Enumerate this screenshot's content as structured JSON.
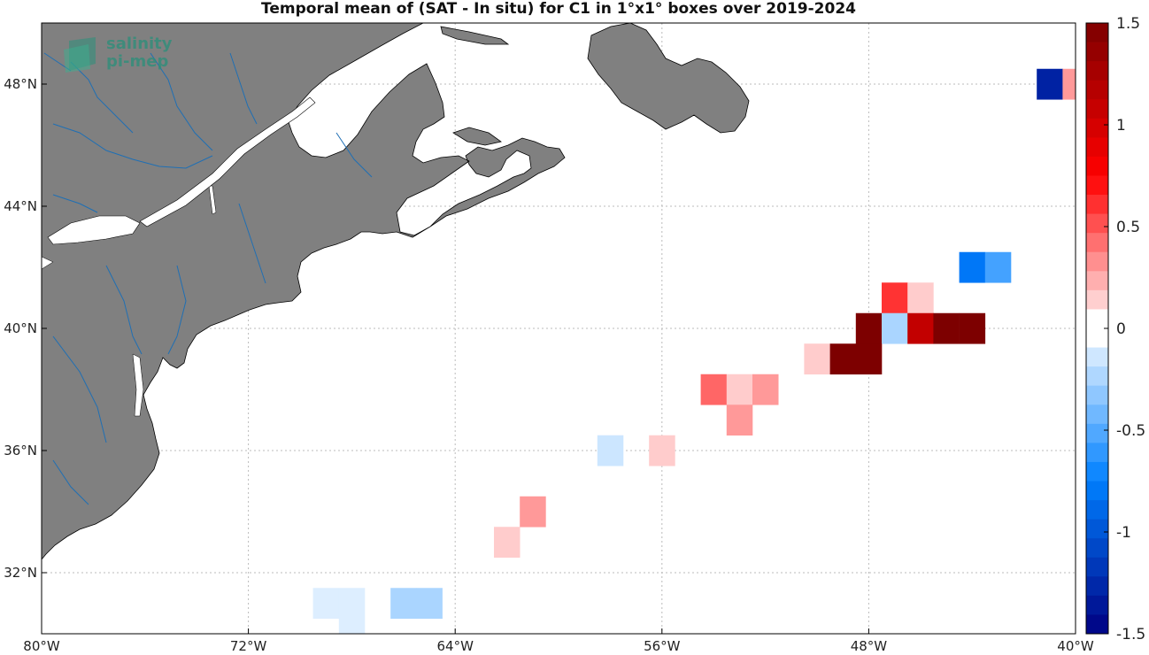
{
  "title": "Temporal mean of (SAT - In situ) for C1 in 1°x1° boxes over 2019-2024",
  "map": {
    "lon_range": [
      -80,
      -40
    ],
    "lat_range": [
      30,
      50
    ],
    "x_ticks": [
      {
        "value": -80,
        "label": "80°W"
      },
      {
        "value": -72,
        "label": "72°W"
      },
      {
        "value": -64,
        "label": "64°W"
      },
      {
        "value": -56,
        "label": "56°W"
      },
      {
        "value": -48,
        "label": "48°W"
      },
      {
        "value": -40,
        "label": "40°W"
      }
    ],
    "y_ticks": [
      {
        "value": 32,
        "label": "32°N"
      },
      {
        "value": 36,
        "label": "36°N"
      },
      {
        "value": 40,
        "label": "40°N"
      },
      {
        "value": 44,
        "label": "44°N"
      },
      {
        "value": 48,
        "label": "48°N"
      }
    ],
    "grid": true,
    "land_color": "#808080",
    "river_color": "#1f6fb4"
  },
  "logo": {
    "line1": "salinity",
    "line2": "pi-mep"
  },
  "colorbar": {
    "range": [
      -1.5,
      1.5
    ],
    "ticks": [
      {
        "value": 1.5,
        "label": "1.5"
      },
      {
        "value": 1,
        "label": "1"
      },
      {
        "value": 0.5,
        "label": "0.5"
      },
      {
        "value": 0,
        "label": "0"
      },
      {
        "value": -0.5,
        "label": "-0.5"
      },
      {
        "value": -1,
        "label": "-1"
      },
      {
        "value": -1.5,
        "label": "-1.5"
      }
    ],
    "levels": 32
  },
  "chart_data": {
    "type": "heatmap",
    "title": "Temporal mean of (SAT - In situ) for C1 in 1°x1° boxes over 2019-2024",
    "xlim": [
      -80,
      -40
    ],
    "ylim": [
      30,
      50
    ],
    "zlim": [
      -1.5,
      1.5
    ],
    "cells": [
      {
        "lon": -41,
        "lat": 48,
        "value": -1.3
      },
      {
        "lon": -40,
        "lat": 48,
        "value": 0.3
      },
      {
        "lon": -44,
        "lat": 42,
        "value": -0.8
      },
      {
        "lon": -43,
        "lat": 42,
        "value": -0.55
      },
      {
        "lon": -47,
        "lat": 41,
        "value": 0.6
      },
      {
        "lon": -46,
        "lat": 41,
        "value": 0.15
      },
      {
        "lon": -48,
        "lat": 40,
        "value": 1.5
      },
      {
        "lon": -47,
        "lat": 40,
        "value": -0.25
      },
      {
        "lon": -46,
        "lat": 40,
        "value": 1.1
      },
      {
        "lon": -45,
        "lat": 40,
        "value": 1.5
      },
      {
        "lon": -44,
        "lat": 40,
        "value": 1.5
      },
      {
        "lon": -50,
        "lat": 39,
        "value": 0.15
      },
      {
        "lon": -49,
        "lat": 39,
        "value": 1.5
      },
      {
        "lon": -48,
        "lat": 39,
        "value": 1.5
      },
      {
        "lon": -54,
        "lat": 38,
        "value": 0.45
      },
      {
        "lon": -53,
        "lat": 38,
        "value": 0.15
      },
      {
        "lon": -52,
        "lat": 38,
        "value": 0.3
      },
      {
        "lon": -53,
        "lat": 37,
        "value": 0.3
      },
      {
        "lon": -58,
        "lat": 36,
        "value": -0.15
      },
      {
        "lon": -56,
        "lat": 36,
        "value": 0.15
      },
      {
        "lon": -61,
        "lat": 34,
        "value": 0.3
      },
      {
        "lon": -62,
        "lat": 33,
        "value": 0.15
      },
      {
        "lon": -69,
        "lat": 31,
        "value": -0.1
      },
      {
        "lon": -68,
        "lat": 31,
        "value": -0.1
      },
      {
        "lon": -68,
        "lat": 30,
        "value": -0.1
      },
      {
        "lon": -66,
        "lat": 31,
        "value": -0.25
      },
      {
        "lon": -65,
        "lat": 31,
        "value": -0.25
      }
    ]
  }
}
